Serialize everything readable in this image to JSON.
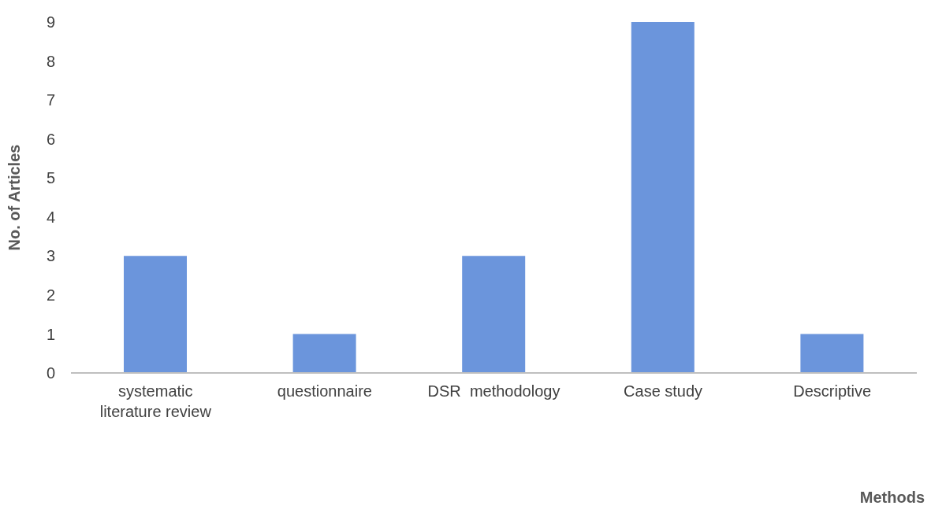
{
  "chart_data": {
    "type": "bar",
    "xlabel": "Methods",
    "ylabel": "No. of Articles",
    "categories": [
      "systematic literature review",
      "questionnaire",
      "DSR  methodology",
      "Case study",
      "Descriptive"
    ],
    "values": [
      3,
      1,
      3,
      9,
      1
    ],
    "color": "#6b95dc",
    "ylim": [
      0,
      9
    ],
    "yticks": [
      0,
      1,
      2,
      3,
      4,
      5,
      6,
      7,
      8,
      9
    ],
    "grid": false,
    "legend": false
  }
}
